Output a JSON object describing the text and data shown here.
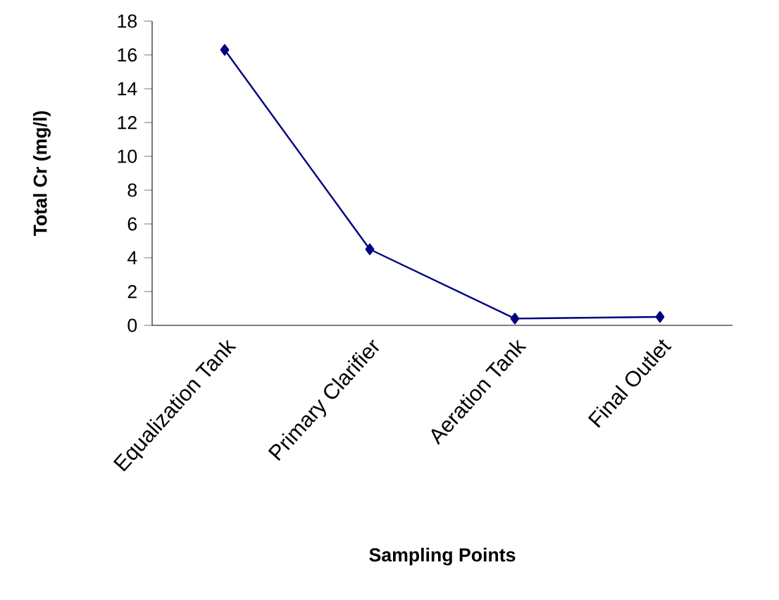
{
  "chart_data": {
    "type": "line",
    "xlabel": "Sampling Points",
    "ylabel": "Total Cr (mg/l)",
    "categories": [
      "Equalization Tank",
      "Primary Clarifier",
      "Aeration Tank",
      "Final Outlet"
    ],
    "series": [
      {
        "color": "#000080",
        "values": [
          16.3,
          4.5,
          0.4,
          0.5
        ]
      }
    ],
    "ylim": [
      0,
      18
    ],
    "yticks": [
      0,
      2,
      4,
      6,
      8,
      10,
      12,
      14,
      16,
      18
    ],
    "marker": "diamond",
    "line_style": "solid"
  }
}
